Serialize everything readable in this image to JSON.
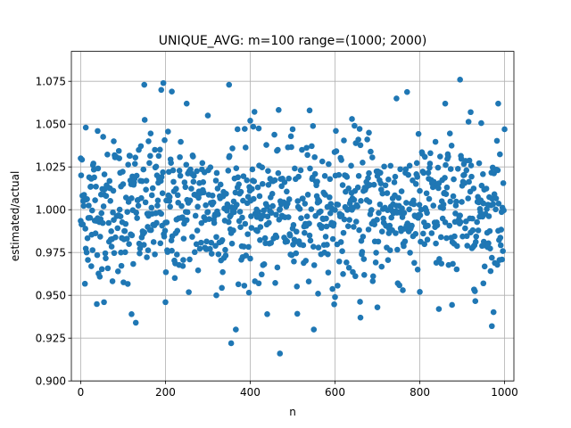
{
  "chart_data": {
    "type": "scatter",
    "title": "UNIQUE_AVG: m=100 range=(1000; 2000)",
    "xlabel": "n",
    "ylabel": "estimated/actual",
    "xlim": [
      -22,
      1022
    ],
    "ylim": [
      0.9,
      1.0925
    ],
    "xticks": [
      0,
      200,
      400,
      600,
      800,
      1000
    ],
    "yticks": [
      0.9,
      0.925,
      0.95,
      0.975,
      1.0,
      1.025,
      1.05,
      1.075
    ],
    "xtick_labels": [
      "0",
      "200",
      "400",
      "600",
      "800",
      "1000"
    ],
    "ytick_labels": [
      "0.900",
      "0.925",
      "0.950",
      "0.975",
      "1.000",
      "1.025",
      "1.050",
      "1.075"
    ],
    "grid": true,
    "marker_color": "#1f77b4",
    "n_points": 1000,
    "series_sample": {
      "x": [
        0,
        12,
        25,
        40,
        55,
        78,
        95,
        120,
        130,
        150,
        160,
        175,
        190,
        195,
        200,
        215,
        250,
        300,
        320,
        350,
        355,
        370,
        400,
        420,
        440,
        470,
        500,
        540,
        560,
        575,
        600,
        640,
        660,
        680,
        700,
        745,
        760,
        800,
        845,
        860,
        895,
        920,
        950,
        970,
        985,
        1000
      ],
      "y": [
        1.03,
        1.048,
        0.967,
        1.046,
        0.946,
        1.04,
        0.975,
        0.939,
        0.934,
        1.073,
        1.04,
        1.035,
        1.07,
        1.074,
        0.946,
        1.069,
        1.062,
        1.055,
        0.95,
        1.073,
        0.922,
        1.047,
        1.052,
        0.957,
        0.939,
        0.916,
        1.047,
        1.058,
        0.951,
        0.975,
        0.949,
        1.053,
        0.937,
        1.045,
        0.943,
        1.065,
        0.953,
        0.952,
        0.942,
        1.062,
        1.076,
        1.057,
        0.957,
        0.932,
        1.062,
        1.047
      ]
    }
  }
}
